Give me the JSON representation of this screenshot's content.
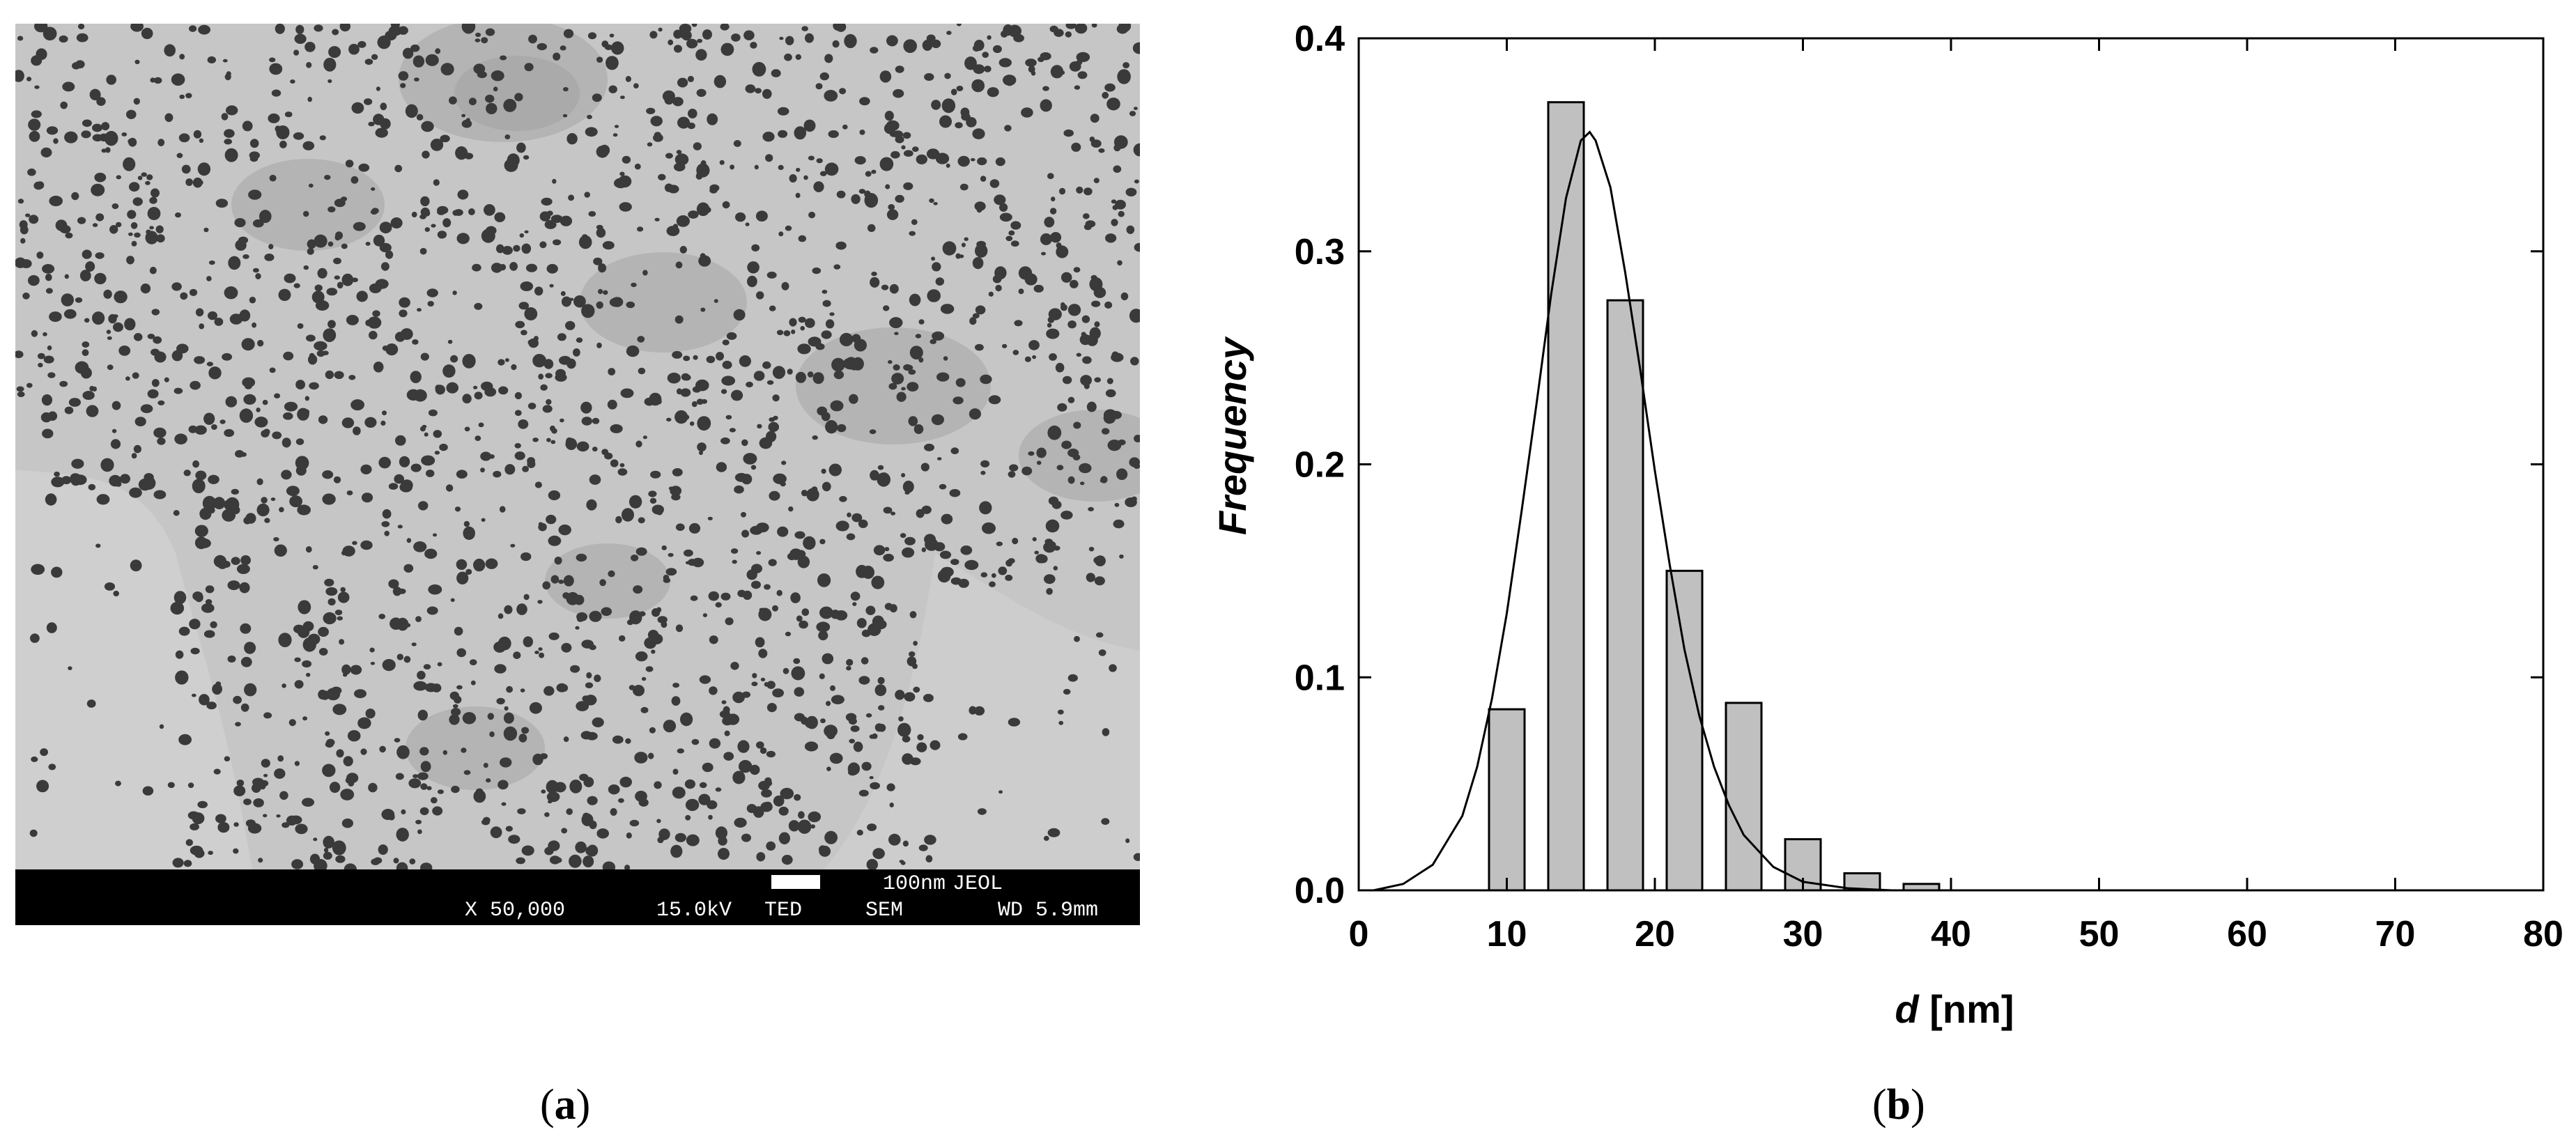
{
  "panel_a": {
    "caption": {
      "open": "(",
      "letter": "a",
      "close": ")"
    },
    "sem_bar": {
      "scale": "100nm",
      "maker": "JEOL",
      "magnification": "X 50,000",
      "voltage": "15.0kV",
      "detector": "TED",
      "mode": "SEM",
      "working_distance": "WD 5.9mm"
    }
  },
  "panel_b": {
    "caption": {
      "open": "(",
      "letter": "b",
      "close": ")"
    }
  },
  "chart_data": {
    "type": "bar",
    "xlabel_var": "d",
    "xlabel_unit": " [nm]",
    "ylabel": "Frequency",
    "xlim": [
      0,
      80
    ],
    "ylim": [
      0,
      0.4
    ],
    "xticks": [
      "0",
      "10",
      "20",
      "30",
      "40",
      "50",
      "60",
      "70",
      "80"
    ],
    "yticks": [
      "0.0",
      "0.1",
      "0.2",
      "0.3",
      "0.4"
    ],
    "bar_width": 2.4,
    "bars": [
      {
        "x": 10,
        "value": 0.085
      },
      {
        "x": 14,
        "value": 0.37
      },
      {
        "x": 18,
        "value": 0.277
      },
      {
        "x": 22,
        "value": 0.15
      },
      {
        "x": 26,
        "value": 0.088
      },
      {
        "x": 30,
        "value": 0.024
      },
      {
        "x": 34,
        "value": 0.008
      },
      {
        "x": 38,
        "value": 0.003
      }
    ],
    "fit_curve": {
      "x": [
        1,
        3,
        5,
        7,
        8,
        9,
        10,
        11,
        12,
        13,
        14,
        15,
        15.6,
        16,
        17,
        18,
        19,
        20,
        21,
        22,
        23,
        24,
        25,
        26,
        28,
        30,
        33,
        36,
        40,
        45,
        50
      ],
      "y": [
        0,
        0.003,
        0.012,
        0.035,
        0.058,
        0.09,
        0.13,
        0.178,
        0.228,
        0.28,
        0.325,
        0.352,
        0.356,
        0.352,
        0.33,
        0.29,
        0.245,
        0.197,
        0.153,
        0.113,
        0.082,
        0.058,
        0.04,
        0.026,
        0.011,
        0.004,
        0.001,
        0.0,
        0.0,
        0.0,
        0.0
      ]
    },
    "colors": {
      "bar_fill": "#c0c0c0",
      "stroke": "#000000"
    }
  }
}
